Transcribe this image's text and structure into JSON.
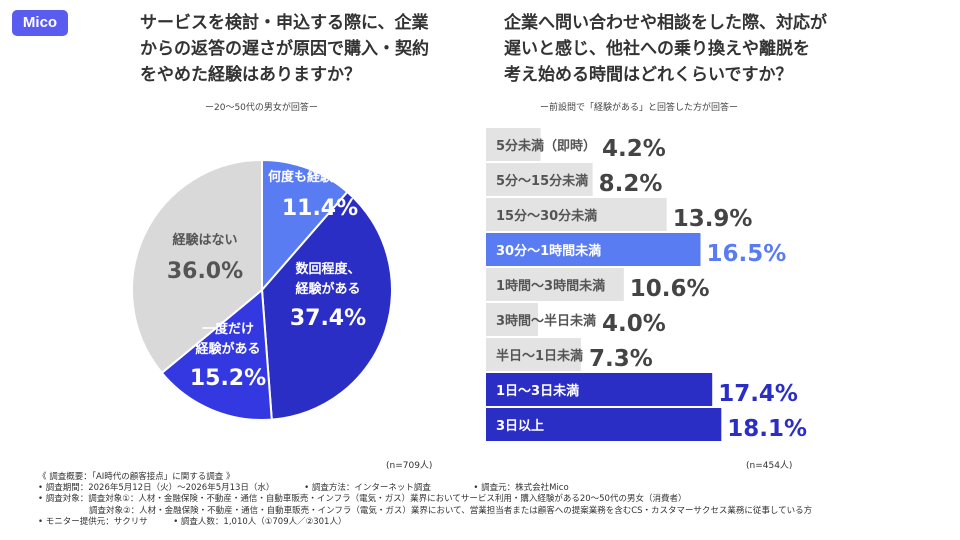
{
  "logo": "Mico",
  "left": {
    "title_lines": [
      "サービスを検討・申込する際に、企業",
      "からの返答の遅さが原因で購入・契約",
      "をやめた経験はありますか？"
    ],
    "subnote": "ー20〜50代の男女が回答ー",
    "n": "(n=709人)"
  },
  "right": {
    "title_lines": [
      "企業へ問い合わせや相談をした際、対応が",
      "遅いと感じ、他社への乗り換えや離脱を",
      "考え始める時間はどれくらいですか？"
    ],
    "subnote": "ー前設問で「経験がある」と回答した方が回答ー",
    "n": "(n=454人)"
  },
  "chart_data": [
    {
      "type": "pie",
      "slices": [
        {
          "label": "何度も経験がある",
          "value": 11.4,
          "display": "11.4%",
          "color": "#5a7cf2"
        },
        {
          "label": "数回程度、経験がある",
          "value": 37.4,
          "display": "37.4%",
          "color": "#2a2ec4"
        },
        {
          "label": "一度だけ経験がある",
          "value": 15.2,
          "display": "15.2%",
          "color": "#3438e0"
        },
        {
          "label": "経験はない",
          "value": 36.0,
          "display": "36.0%",
          "color": "#d9d9d9"
        }
      ]
    },
    {
      "type": "bar",
      "orientation": "horizontal",
      "categories": [
        "5分未満（即時）",
        "5分〜15分未満",
        "15分〜30分未満",
        "30分〜1時間未満",
        "1時間〜3時間未満",
        "3時間〜半日未満",
        "半日〜1日未満",
        "1日〜3日未満",
        "3日以上"
      ],
      "values": [
        4.2,
        8.2,
        13.9,
        16.5,
        10.6,
        4.0,
        7.3,
        17.4,
        18.1
      ],
      "display": [
        "4.2%",
        "8.2%",
        "13.9%",
        "16.5%",
        "10.6%",
        "4.0%",
        "7.3%",
        "17.4%",
        "18.1%"
      ],
      "colors": [
        "#e3e3e3",
        "#e3e3e3",
        "#e3e3e3",
        "#5a7cf2",
        "#e3e3e3",
        "#e3e3e3",
        "#e3e3e3",
        "#2a2ec4",
        "#2a2ec4"
      ],
      "label_colors": [
        "#555555",
        "#555555",
        "#555555",
        "#ffffff",
        "#555555",
        "#555555",
        "#555555",
        "#ffffff",
        "#ffffff"
      ],
      "value_colors": [
        "#444444",
        "#444444",
        "#444444",
        "#5a7cf2",
        "#444444",
        "#444444",
        "#444444",
        "#2a2ec4",
        "#2a2ec4"
      ]
    }
  ],
  "footer_lines": [
    "《 調査概要：「AI時代の顧客接点」に関する調査 》",
    "• 調査期間：2026年5月12日（火）〜2026年5月13日（水）　　　　• 調査方法：インターネット調査　　　　　• 調査元：株式会社Mico",
    "• 調査対象：調査対象①：人材・金融保険・不動産・通信・自動車販売・インフラ（電気・ガス）業界においてサービス利用・購入経験がある20〜50代の男女（消費者）",
    "　　　　　　調査対象②：人材・金融保険・不動産・通信・自動車販売・インフラ（電気・ガス）業界において、営業担当者または顧客への提案業務を含むCS・カスタマーサクセス業務に従事している方",
    "• モニター提供元：サクリサ　　　• 調査人数：1,010人（①709人／②301人）"
  ]
}
